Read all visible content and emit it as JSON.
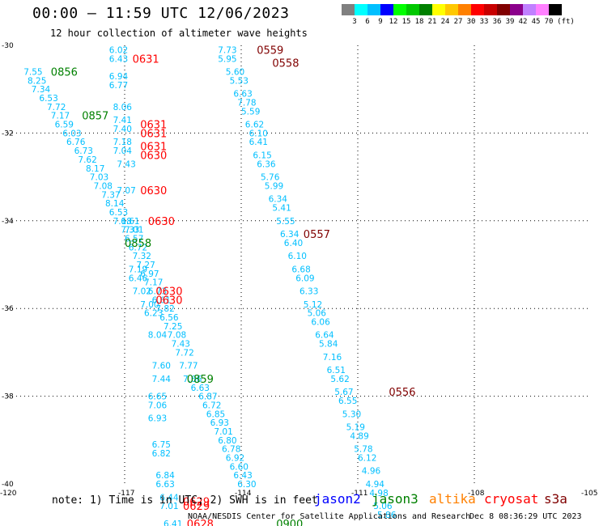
{
  "title": "00:00 – 11:59 UTC 12/06/2023",
  "subtitle": "12 hour collection of altimeter wave heights",
  "color_scale": {
    "unit": "(ft)",
    "colors": [
      "#808080",
      "#00ffff",
      "#00bfff",
      "#0000ff",
      "#00ff00",
      "#00c800",
      "#008000",
      "#ffff00",
      "#ffc800",
      "#ff8000",
      "#ff0000",
      "#c80000",
      "#800000",
      "#8b008b",
      "#c080ff",
      "#ff80ff",
      "#000000"
    ],
    "labels": [
      "3",
      "6",
      "9",
      "12",
      "15",
      "18",
      "21",
      "24",
      "27",
      "30",
      "33",
      "36",
      "39",
      "42",
      "45",
      "70"
    ]
  },
  "note": "note:  1) Time is in UTC; 2) SWH is in feet",
  "satellites": [
    {
      "name": "jason2",
      "color": "#0000ff"
    },
    {
      "name": "jason3",
      "color": "#008000"
    },
    {
      "name": "altika",
      "color": "#ff8000"
    },
    {
      "name": "cryosat",
      "color": "#ff0000"
    },
    {
      "name": "s3a",
      "color": "#800000"
    }
  ],
  "credit": "NOAA/NESDIS Center for Satellite Applications and Research",
  "generated": "Dec  8 08:36:29 UTC 2023",
  "chart_data": {
    "type": "scatter",
    "xlabel": "",
    "ylabel": "",
    "xlim": [
      -120,
      -105
    ],
    "ylim": [
      -40,
      -30
    ],
    "x_ticks": [
      "-120",
      "-117",
      "-114",
      "-111",
      "-108",
      "-105"
    ],
    "y_ticks": [
      "-30",
      "-32",
      "-34",
      "-36",
      "-38",
      "-40"
    ],
    "grid": true,
    "track_color": "#00bfff",
    "tracks": [
      {
        "sat": "jason3",
        "points": [
          [
            -119.6,
            -30.6,
            "7.55"
          ],
          [
            -119.5,
            -30.8,
            "8.25"
          ],
          [
            -119.4,
            -31.0,
            "7.34"
          ],
          [
            -119.2,
            -31.2,
            "6.53"
          ],
          [
            -119.0,
            -31.4,
            "7.72"
          ],
          [
            -118.9,
            -31.6,
            "7.17"
          ],
          [
            -118.8,
            -31.8,
            "6.59"
          ],
          [
            -118.6,
            -32.0,
            "6.03"
          ],
          [
            -118.5,
            -32.2,
            "6.76"
          ],
          [
            -118.3,
            -32.4,
            "6.73"
          ],
          [
            -118.2,
            -32.6,
            "7.62"
          ],
          [
            -118.0,
            -32.8,
            "8.17"
          ],
          [
            -117.9,
            -33.0,
            "7.03"
          ],
          [
            -117.8,
            -33.2,
            "7.08"
          ],
          [
            -117.6,
            -33.4,
            "7.37"
          ],
          [
            -117.5,
            -33.6,
            "8.14"
          ],
          [
            -117.4,
            -33.8,
            "6.53"
          ],
          [
            -117.3,
            -34.0,
            "7.18"
          ],
          [
            -117.1,
            -34.2,
            "7.33"
          ],
          [
            -117.0,
            -34.4,
            "6.57"
          ],
          [
            -116.9,
            -34.6,
            "6.72"
          ],
          [
            -116.8,
            -34.8,
            "7.32"
          ],
          [
            -116.7,
            -35.0,
            "7.27"
          ],
          [
            -116.6,
            -35.2,
            "6.97"
          ],
          [
            -116.5,
            -35.4,
            "7.17"
          ],
          [
            -116.4,
            -35.6,
            "6.73"
          ],
          [
            -116.3,
            -35.8,
            "6.61"
          ],
          [
            -116.2,
            -36.0,
            "7.82"
          ],
          [
            -116.1,
            -36.2,
            "6.56"
          ],
          [
            -116.0,
            -36.4,
            "7.25"
          ],
          [
            -115.9,
            -36.6,
            "7.08"
          ],
          [
            -115.8,
            -36.8,
            "7.43"
          ],
          [
            -115.7,
            -37.0,
            "7.72"
          ],
          [
            -115.6,
            -37.3,
            "7.77"
          ],
          [
            -115.5,
            -37.6,
            "7.66"
          ],
          [
            -115.3,
            -37.8,
            "6.63"
          ],
          [
            -115.1,
            -38.0,
            "6.87"
          ],
          [
            -115.0,
            -38.2,
            "6.72"
          ],
          [
            -114.9,
            -38.4,
            "6.85"
          ],
          [
            -114.8,
            -38.6,
            "6.93"
          ],
          [
            -114.7,
            -38.8,
            "7.01"
          ],
          [
            -114.6,
            -39.0,
            "6.80"
          ],
          [
            -114.5,
            -39.2,
            "6.78"
          ],
          [
            -114.4,
            -39.4,
            "6.92"
          ],
          [
            -114.3,
            -39.6,
            "6.60"
          ],
          [
            -114.2,
            -39.8,
            "6.43"
          ],
          [
            -114.1,
            -40.0,
            "6.30"
          ]
        ]
      },
      {
        "sat": "jason3",
        "points": [
          [
            -117.4,
            -30.1,
            "6.02"
          ],
          [
            -117.4,
            -30.3,
            "6.43"
          ],
          [
            -117.4,
            -30.7,
            "6.94"
          ],
          [
            -117.4,
            -30.9,
            "6.77"
          ],
          [
            -117.3,
            -31.4,
            "8.06"
          ],
          [
            -117.3,
            -31.7,
            "7.41"
          ],
          [
            -117.3,
            -31.9,
            "7.40"
          ],
          [
            -117.3,
            -32.2,
            "7.18"
          ],
          [
            -117.3,
            -32.4,
            "7.04"
          ],
          [
            -117.2,
            -32.7,
            "7.43"
          ],
          [
            -117.2,
            -33.3,
            "7.07"
          ],
          [
            -117.1,
            -34.0,
            "6.61"
          ],
          [
            -117.0,
            -34.2,
            "7.01"
          ],
          [
            -116.9,
            -35.1,
            "7.19"
          ],
          [
            -116.9,
            -35.3,
            "6.46"
          ],
          [
            -116.8,
            -35.6,
            "7.02"
          ],
          [
            -116.6,
            -35.9,
            "7.00"
          ],
          [
            -116.5,
            -36.1,
            "6.23"
          ],
          [
            -116.4,
            -36.6,
            "8.04"
          ],
          [
            -116.3,
            -37.3,
            "7.60"
          ],
          [
            -116.3,
            -37.6,
            "7.44"
          ],
          [
            -116.4,
            -38.0,
            "6.65"
          ],
          [
            -116.4,
            -38.2,
            "7.06"
          ],
          [
            -116.4,
            -38.5,
            "6.93"
          ],
          [
            -116.3,
            -39.1,
            "6.75"
          ],
          [
            -116.3,
            -39.3,
            "6.82"
          ],
          [
            -116.2,
            -39.8,
            "6.84"
          ],
          [
            -116.2,
            -40.0,
            "6.63"
          ],
          [
            -116.1,
            -40.3,
            "6.44"
          ],
          [
            -116.1,
            -40.5,
            "7.01"
          ],
          [
            -116.0,
            -40.9,
            "6.41"
          ]
        ]
      },
      {
        "sat": "cryosat",
        "points": [
          [
            -114.6,
            -30.1,
            "7.73"
          ],
          [
            -114.6,
            -30.3,
            "5.95"
          ],
          [
            -114.4,
            -30.6,
            "5.60"
          ],
          [
            -114.3,
            -30.8,
            "5.53"
          ],
          [
            -114.2,
            -31.1,
            "6.63"
          ],
          [
            -114.1,
            -31.3,
            "7.78"
          ],
          [
            -114.0,
            -31.5,
            "5.59"
          ],
          [
            -113.9,
            -31.8,
            "6.62"
          ],
          [
            -113.8,
            -32.0,
            "6.10"
          ],
          [
            -113.8,
            -32.2,
            "6.41"
          ],
          [
            -113.7,
            -32.5,
            "6.15"
          ],
          [
            -113.6,
            -32.7,
            "6.36"
          ],
          [
            -113.5,
            -33.0,
            "5.76"
          ],
          [
            -113.4,
            -33.2,
            "5.99"
          ],
          [
            -113.3,
            -33.5,
            "6.34"
          ],
          [
            -113.2,
            -33.7,
            "5.41"
          ],
          [
            -113.1,
            -34.0,
            "5.55"
          ],
          [
            -113.0,
            -34.3,
            "6.34"
          ],
          [
            -112.9,
            -34.5,
            "6.40"
          ],
          [
            -112.8,
            -34.8,
            "6.10"
          ],
          [
            -112.7,
            -35.1,
            "6.68"
          ],
          [
            -112.6,
            -35.3,
            "6.09"
          ],
          [
            -112.5,
            -35.6,
            "6.33"
          ],
          [
            -112.4,
            -35.9,
            "5.12"
          ],
          [
            -112.3,
            -36.1,
            "5.06"
          ],
          [
            -112.2,
            -36.3,
            "6.06"
          ],
          [
            -112.1,
            -36.6,
            "6.64"
          ],
          [
            -112.0,
            -36.8,
            "5.84"
          ],
          [
            -111.9,
            -37.1,
            "7.16"
          ],
          [
            -111.8,
            -37.4,
            "6.51"
          ],
          [
            -111.7,
            -37.6,
            "5.62"
          ],
          [
            -111.6,
            -37.9,
            "5.67"
          ],
          [
            -111.5,
            -38.1,
            "6.55"
          ],
          [
            -111.4,
            -38.4,
            "5.30"
          ],
          [
            -111.3,
            -38.7,
            "5.19"
          ],
          [
            -111.2,
            -38.9,
            "4.89"
          ],
          [
            -111.1,
            -39.2,
            "5.78"
          ],
          [
            -111.0,
            -39.4,
            "6.12"
          ],
          [
            -110.9,
            -39.7,
            "4.96"
          ],
          [
            -110.8,
            -40.0,
            "4.94"
          ],
          [
            -110.7,
            -40.2,
            "4.98"
          ],
          [
            -110.6,
            -40.5,
            "5.06"
          ],
          [
            -110.5,
            -40.7,
            "5.86"
          ]
        ]
      }
    ],
    "time_labels": [
      {
        "x": -116.8,
        "y": -30.3,
        "text": "0631",
        "sat": "cryosat"
      },
      {
        "x": -118.9,
        "y": -30.6,
        "text": "0856",
        "sat": "jason3"
      },
      {
        "x": -118.1,
        "y": -31.6,
        "text": "0857",
        "sat": "jason3"
      },
      {
        "x": -116.6,
        "y": -31.8,
        "text": "0631",
        "sat": "cryosat"
      },
      {
        "x": -116.6,
        "y": -32.0,
        "text": "0631",
        "sat": "cryosat"
      },
      {
        "x": -116.6,
        "y": -32.3,
        "text": "0631",
        "sat": "cryosat"
      },
      {
        "x": -116.6,
        "y": -32.5,
        "text": "0630",
        "sat": "cryosat"
      },
      {
        "x": -116.6,
        "y": -33.3,
        "text": "0630",
        "sat": "cryosat"
      },
      {
        "x": -116.4,
        "y": -34.0,
        "text": "0630",
        "sat": "cryosat"
      },
      {
        "x": -117.0,
        "y": -34.5,
        "text": "0858",
        "sat": "jason3"
      },
      {
        "x": -116.2,
        "y": -35.6,
        "text": "0630",
        "sat": "cryosat"
      },
      {
        "x": -116.2,
        "y": -35.8,
        "text": "0630",
        "sat": "cryosat"
      },
      {
        "x": -115.4,
        "y": -37.6,
        "text": "0859",
        "sat": "jason3"
      },
      {
        "x": -115.5,
        "y": -40.4,
        "text": "0629",
        "sat": "cryosat"
      },
      {
        "x": -115.5,
        "y": -40.5,
        "text": "0629",
        "sat": "cryosat"
      },
      {
        "x": -115.4,
        "y": -40.9,
        "text": "0628",
        "sat": "cryosat"
      },
      {
        "x": -113.1,
        "y": -40.9,
        "text": "0900",
        "sat": "jason3"
      },
      {
        "x": -113.6,
        "y": -30.1,
        "text": "0559",
        "sat": "s3a"
      },
      {
        "x": -113.2,
        "y": -30.4,
        "text": "0558",
        "sat": "s3a"
      },
      {
        "x": -112.4,
        "y": -34.3,
        "text": "0557",
        "sat": "s3a"
      },
      {
        "x": -110.2,
        "y": -37.9,
        "text": "0556",
        "sat": "s3a"
      }
    ]
  }
}
